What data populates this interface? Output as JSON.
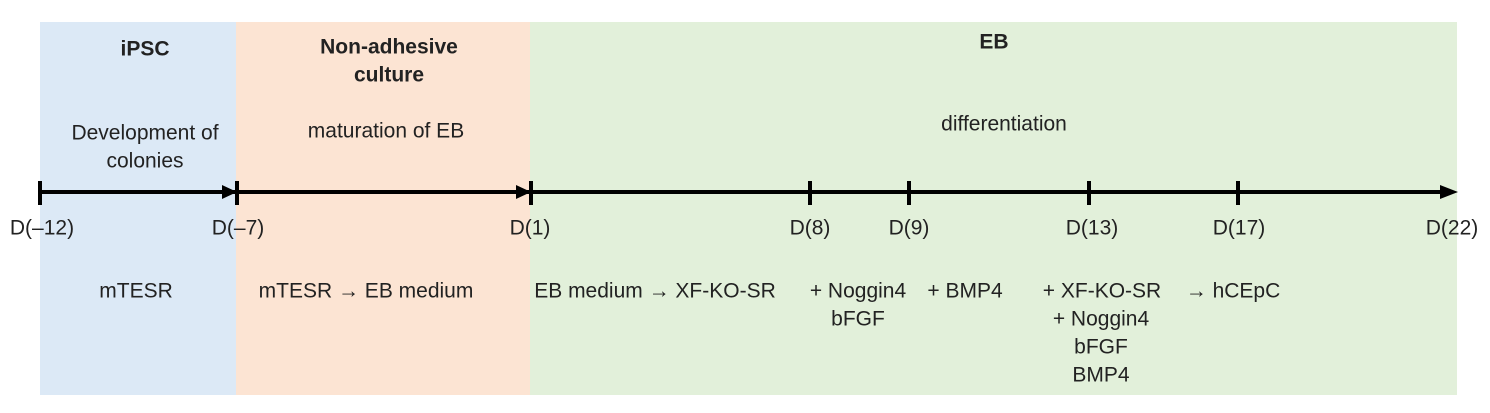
{
  "phases": [
    {
      "title": [
        "iPSC"
      ],
      "description": [
        "Development of",
        "colonies"
      ]
    },
    {
      "title": [
        "Non-adhesive",
        "culture"
      ],
      "description": [
        "maturation of EB"
      ]
    },
    {
      "title": [
        "EB"
      ],
      "description": [
        "differentiation"
      ]
    }
  ],
  "timepoints": [
    "D(–12)",
    "D(–7)",
    "D(1)",
    "D(8)",
    "D(9)",
    "D(13)",
    "D(17)",
    "D(22)"
  ],
  "media": [
    [
      "mTESR"
    ],
    [
      "mTESR → EB medium"
    ],
    [
      "EB medium → XF-KO-SR"
    ],
    [
      "+ Noggin4",
      "bFGF"
    ],
    [
      "+ BMP4"
    ],
    [
      "+ XF-KO-SR",
      "+ Noggin4",
      "bFGF",
      "BMP4"
    ],
    [
      "→ hCEpC"
    ]
  ]
}
